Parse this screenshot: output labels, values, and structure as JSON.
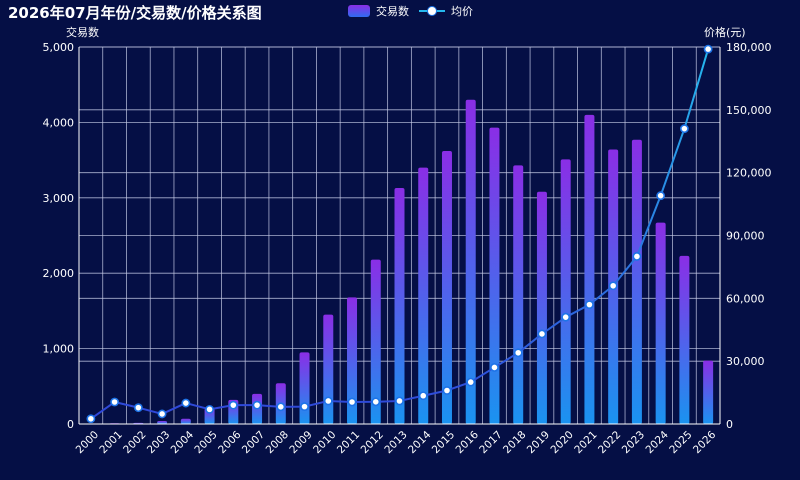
{
  "chart_data": {
    "type": "bar",
    "title": "2026年07月年份/交易数/价格关系图",
    "categories": [
      "2000",
      "2001",
      "2002",
      "2003",
      "2004",
      "2005",
      "2006",
      "2007",
      "2008",
      "2009",
      "2010",
      "2011",
      "2012",
      "2013",
      "2014",
      "2015",
      "2016",
      "2017",
      "2018",
      "2019",
      "2020",
      "2021",
      "2022",
      "2023",
      "2024",
      "2025",
      "2026"
    ],
    "series": [
      {
        "name": "交易数",
        "type": "bar",
        "axis": "left",
        "values": [
          5,
          10,
          15,
          40,
          70,
          210,
          320,
          400,
          540,
          950,
          1450,
          1680,
          2180,
          3130,
          3400,
          3620,
          4300,
          3930,
          3430,
          3080,
          3510,
          4100,
          3640,
          3770,
          2670,
          2230,
          840
        ]
      },
      {
        "name": "均价",
        "type": "line",
        "axis": "right",
        "values": [
          2500,
          10500,
          7800,
          4800,
          10000,
          7000,
          9000,
          9000,
          8200,
          8300,
          11000,
          10500,
          10600,
          11000,
          13500,
          16000,
          20000,
          27000,
          34000,
          43000,
          51000,
          57000,
          66000,
          80000,
          109000,
          141000,
          179000
        ]
      }
    ],
    "ylabel_left": "交易数",
    "ylabel_right": "价格(元)",
    "ylim_left": [
      0,
      5000
    ],
    "ylim_right": [
      0,
      180000
    ],
    "yticks_left": [
      "0",
      "1,000",
      "2,000",
      "3,000",
      "4,000",
      "5,000"
    ],
    "yticks_right": [
      "0",
      "30,000",
      "60,000",
      "90,000",
      "120,000",
      "150,000",
      "180,000"
    ],
    "grid": true,
    "legend_position": "top-center",
    "colors": {
      "background": "#050f45",
      "bar_top": "#8a2ee6",
      "bar_bottom": "#1a93f0",
      "line": "#25b8ee",
      "line_dim": "#2f45d8",
      "marker_fill": "#ffffff",
      "marker_stroke": "#1e74e8",
      "grid": "#c8cde8"
    }
  }
}
